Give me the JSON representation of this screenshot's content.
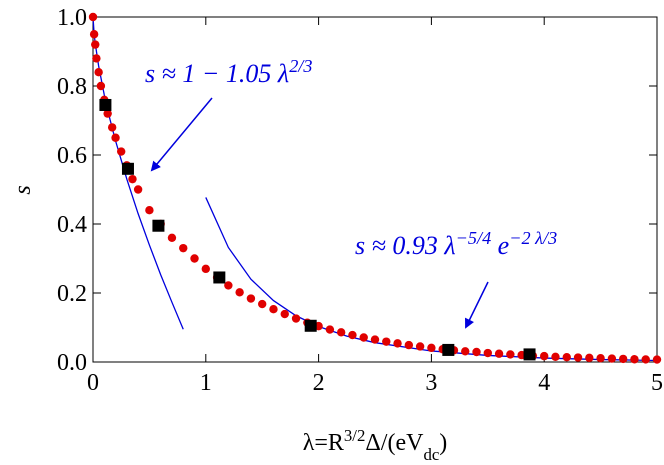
{
  "chart_data": {
    "type": "scatter",
    "x_label_parts": [
      {
        "text": "λ=R"
      },
      {
        "sup": "3/2"
      },
      {
        "text": "Δ/(eV"
      },
      {
        "sub": "dc"
      },
      {
        "text": ")"
      }
    ],
    "y_label": "s",
    "xlim": [
      0,
      5
    ],
    "ylim": [
      0,
      1
    ],
    "xticks": [
      0,
      1,
      2,
      3,
      4,
      5
    ],
    "yticks": [
      {
        "value": 0,
        "label": "0.0"
      },
      {
        "value": 0.2,
        "label": "0.2"
      },
      {
        "value": 0.4,
        "label": "0.4"
      },
      {
        "value": 0.6,
        "label": "0.6"
      },
      {
        "value": 0.8,
        "label": "0.8"
      },
      {
        "value": 1,
        "label": "1.0"
      }
    ],
    "series": [
      {
        "kind": "dots",
        "color": "#e00000",
        "x": [
          0,
          0.01,
          0.02,
          0.03,
          0.05,
          0.07,
          0.1,
          0.13,
          0.17,
          0.2,
          0.25,
          0.3,
          0.35,
          0.4,
          0.5,
          0.6,
          0.7,
          0.8,
          0.9,
          1.0,
          1.1,
          1.2,
          1.3,
          1.4,
          1.5,
          1.6,
          1.7,
          1.8,
          1.9,
          2.0,
          2.1,
          2.2,
          2.3,
          2.4,
          2.5,
          2.6,
          2.7,
          2.8,
          2.9,
          3.0,
          3.1,
          3.2,
          3.3,
          3.4,
          3.5,
          3.6,
          3.7,
          3.8,
          3.9,
          4.0,
          4.1,
          4.2,
          4.3,
          4.4,
          4.5,
          4.6,
          4.7,
          4.8,
          4.9,
          5.0
        ],
        "values": [
          1.0,
          0.95,
          0.92,
          0.88,
          0.84,
          0.8,
          0.76,
          0.72,
          0.68,
          0.65,
          0.61,
          0.57,
          0.53,
          0.5,
          0.44,
          0.4,
          0.36,
          0.33,
          0.3,
          0.27,
          0.245,
          0.222,
          0.202,
          0.184,
          0.168,
          0.153,
          0.139,
          0.126,
          0.114,
          0.104,
          0.094,
          0.086,
          0.078,
          0.071,
          0.065,
          0.059,
          0.054,
          0.049,
          0.045,
          0.041,
          0.037,
          0.034,
          0.031,
          0.029,
          0.026,
          0.024,
          0.022,
          0.02,
          0.018,
          0.017,
          0.015,
          0.014,
          0.013,
          0.012,
          0.011,
          0.01,
          0.009,
          0.008,
          0.0075,
          0.007
        ]
      },
      {
        "kind": "squares",
        "color": "#000000",
        "x": [
          0.11,
          0.31,
          0.58,
          1.12,
          1.93,
          3.15,
          3.87
        ],
        "values": [
          0.745,
          0.56,
          0.395,
          0.245,
          0.105,
          0.035,
          0.022
        ]
      },
      {
        "kind": "line",
        "color": "#0000dd",
        "x": [
          0,
          0.01,
          0.02,
          0.05,
          0.1,
          0.15,
          0.2,
          0.3,
          0.4,
          0.5,
          0.6,
          0.7,
          0.8
        ],
        "values": [
          1,
          0.951,
          0.923,
          0.858,
          0.774,
          0.704,
          0.641,
          0.53,
          0.43,
          0.339,
          0.253,
          0.173,
          0.095
        ]
      },
      {
        "kind": "line",
        "color": "#0000dd",
        "x": [
          1,
          1.2,
          1.4,
          1.6,
          1.8,
          2,
          2.25,
          2.5,
          3,
          3.5,
          4,
          4.5,
          5
        ],
        "values": [
          0.477,
          0.332,
          0.24,
          0.178,
          0.134,
          0.103,
          0.075,
          0.056,
          0.032,
          0.019,
          0.0114,
          0.0071,
          0.0044
        ]
      }
    ],
    "annotations": [
      {
        "parts": [
          {
            "text": "s ≈ 1 − 1.05 λ"
          },
          {
            "sup": "2/3"
          }
        ]
      },
      {
        "parts": [
          {
            "text": "s ≈ 0.93 λ"
          },
          {
            "sup": "−5/4"
          },
          {
            "text": " e"
          },
          {
            "sup": "−2 λ/3"
          }
        ]
      }
    ]
  }
}
